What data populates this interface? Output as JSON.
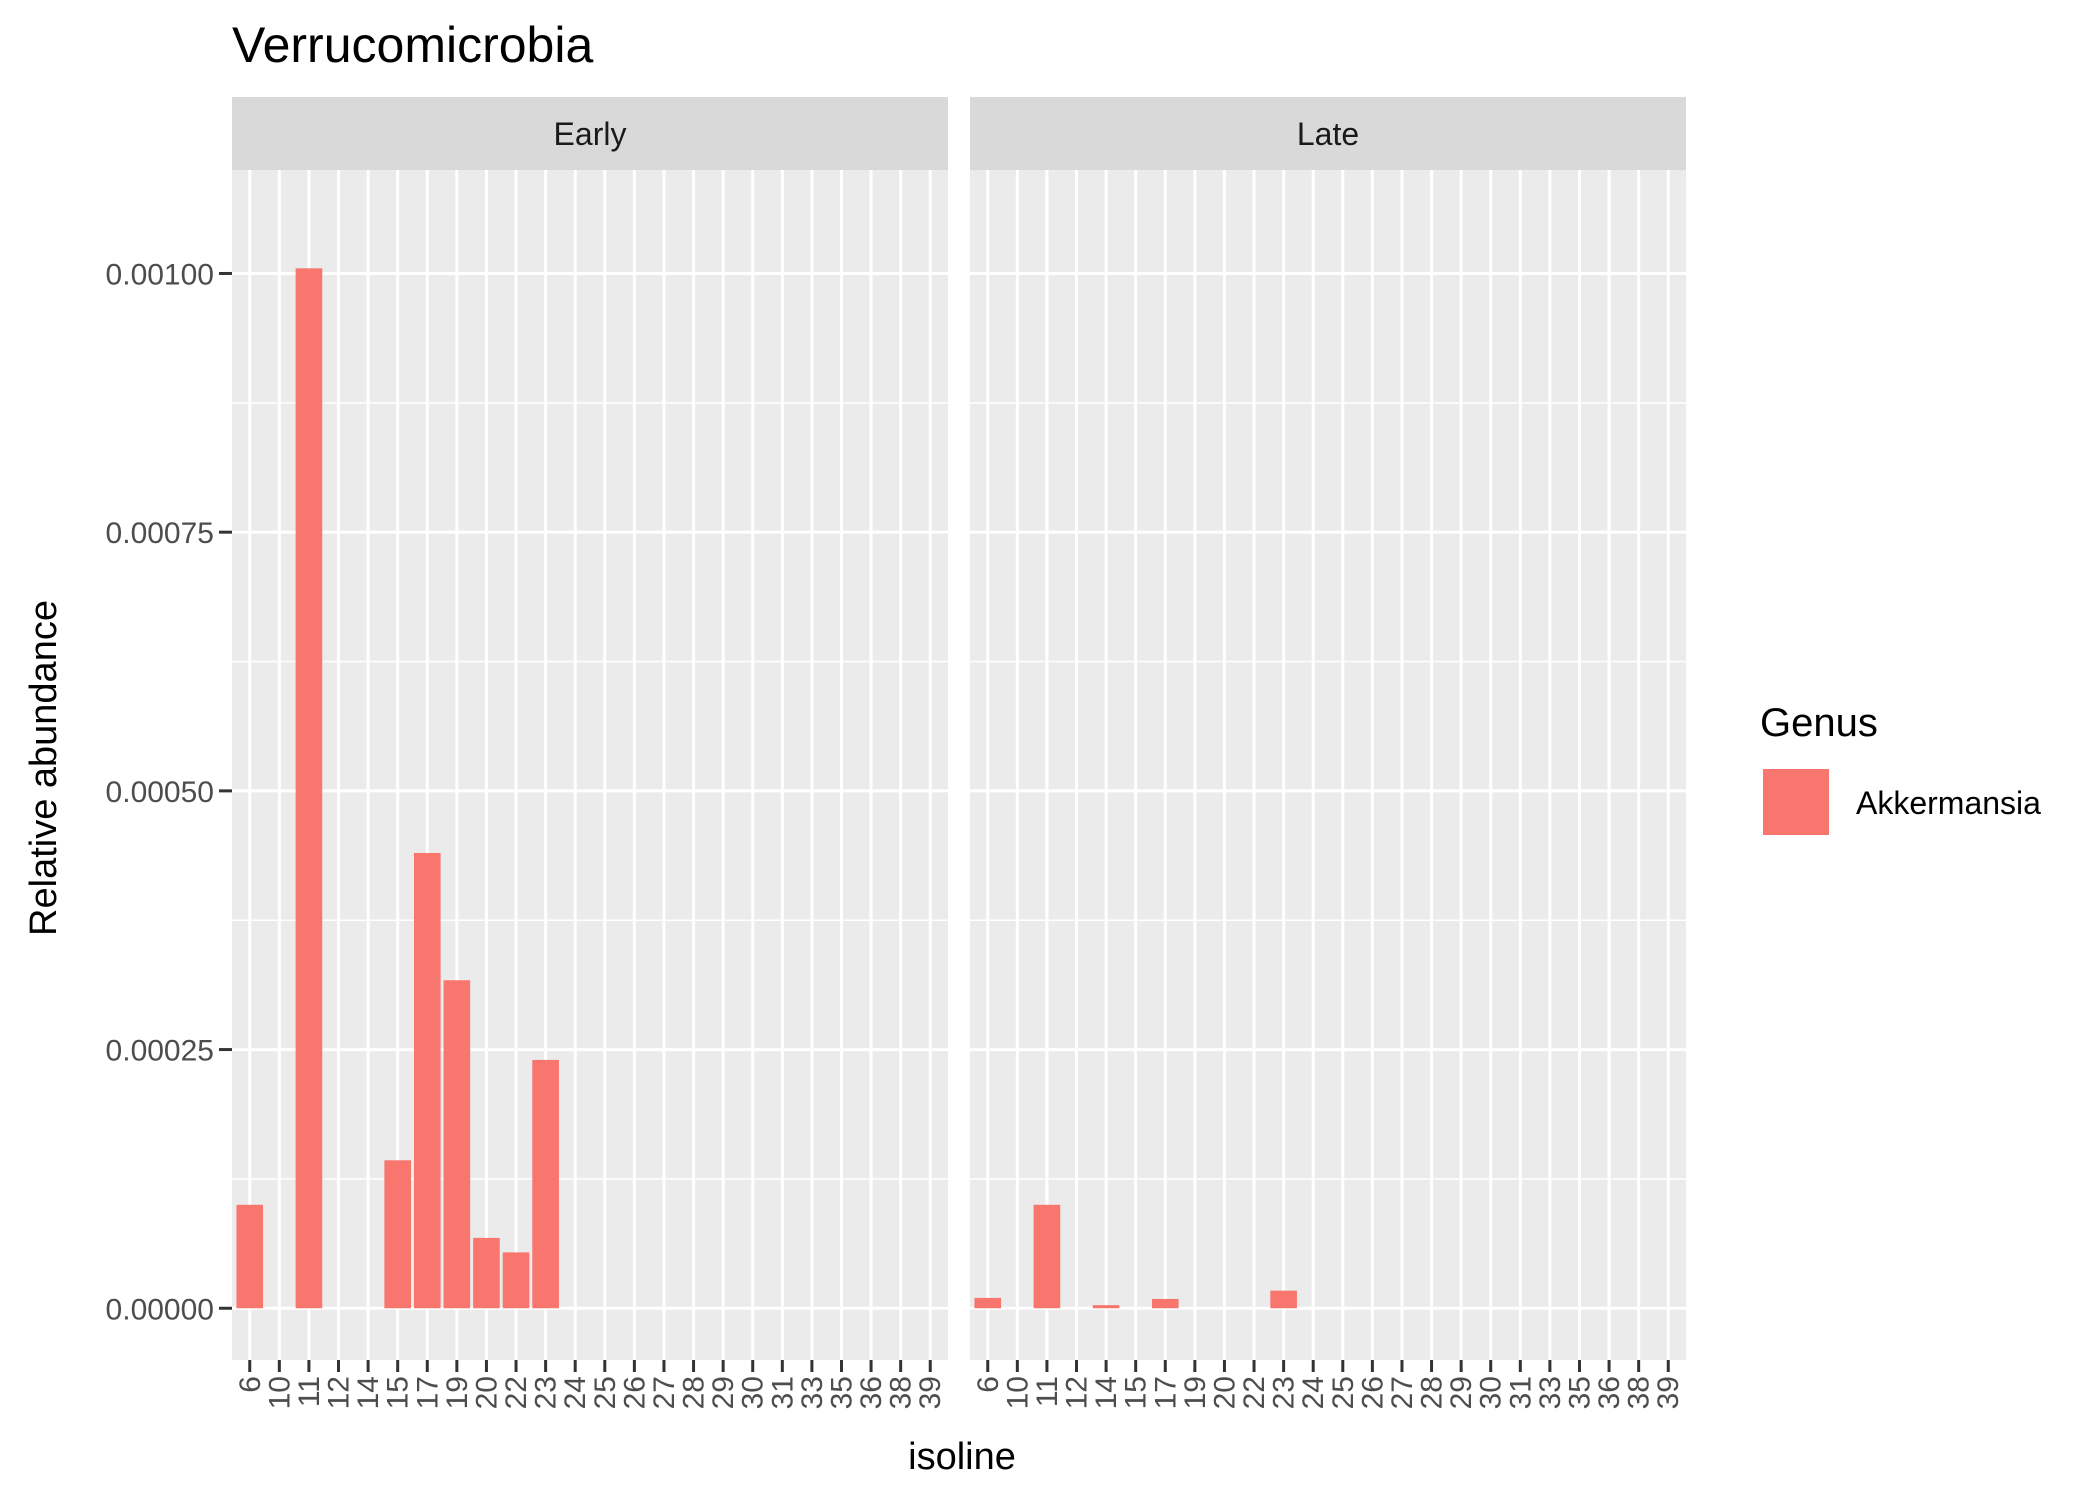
{
  "chart_data": {
    "type": "bar",
    "title": "Verrucomicrobia",
    "xlabel": "isoline",
    "ylabel": "Relative abundance",
    "ylim": [
      -5e-05,
      0.0011
    ],
    "yticks": [
      "0.00000",
      "0.00025",
      "0.00050",
      "0.00075",
      "0.00100"
    ],
    "ytick_values": [
      0,
      0.00025,
      0.0005,
      0.00075,
      0.001
    ],
    "grid": true,
    "legend": {
      "title": "Genus",
      "placement": "right",
      "entries": [
        {
          "label": "Akkermansia",
          "color": "#F8766D"
        }
      ]
    },
    "bar_color": "#F8766D",
    "panel_background": "#EBEBEB",
    "strip_background": "#D9D9D9",
    "facets": [
      {
        "label": "Early",
        "categories": [
          "6",
          "10",
          "11",
          "12",
          "14",
          "15",
          "17",
          "19",
          "20",
          "22",
          "23",
          "24",
          "25",
          "26",
          "27",
          "28",
          "29",
          "30",
          "31",
          "33",
          "35",
          "36",
          "38",
          "39"
        ],
        "values": [
          0.0001,
          0,
          0.001005,
          0,
          0,
          0.000143,
          0.00044,
          0.000317,
          6.8e-05,
          5.4e-05,
          0.00024,
          0,
          0,
          0,
          0,
          0,
          0,
          0,
          0,
          0,
          0,
          0,
          0,
          0
        ]
      },
      {
        "label": "Late",
        "categories": [
          "6",
          "10",
          "11",
          "12",
          "14",
          "15",
          "17",
          "19",
          "20",
          "22",
          "23",
          "24",
          "25",
          "26",
          "27",
          "28",
          "29",
          "30",
          "31",
          "33",
          "35",
          "36",
          "38",
          "39"
        ],
        "values": [
          1e-05,
          0,
          0.0001,
          0,
          3e-06,
          0,
          9e-06,
          0,
          0,
          0,
          1.7e-05,
          0,
          0,
          0,
          0,
          0,
          0,
          0,
          0,
          0,
          0,
          0,
          0,
          0
        ]
      }
    ]
  }
}
